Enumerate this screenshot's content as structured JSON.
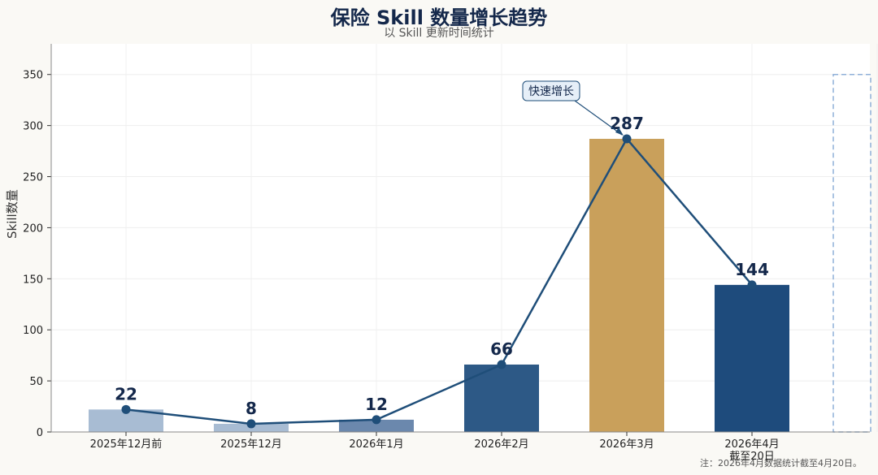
{
  "chart_data": {
    "type": "bar",
    "title": "保险 Skill 数量增长趋势",
    "subtitle": "以 Skill 更新时间统计",
    "ylabel": "Skill数量",
    "xlabel": "",
    "ylim": [
      0,
      380
    ],
    "yticks": [
      0,
      50,
      100,
      150,
      200,
      250,
      300,
      350
    ],
    "categories": [
      "2025年12月前",
      "2025年12月",
      "2026年1月",
      "2026年2月",
      "2026年3月",
      "2026年4月\n截至20日"
    ],
    "values": [
      22,
      8,
      12,
      66,
      287,
      144
    ],
    "projected_value": 350,
    "bar_colors": [
      "#a8bcd3",
      "#a8bcd3",
      "#6b88ad",
      "#2d5986",
      "#c9a05b",
      "#1e4b7c"
    ],
    "line_color": "#1f4e79",
    "projection_color": "#8fb0d8",
    "grid": true,
    "annotation": {
      "text": "快速增长",
      "target_index": 4
    },
    "note": "注：2026年4月数据统计截至4月20日。"
  }
}
